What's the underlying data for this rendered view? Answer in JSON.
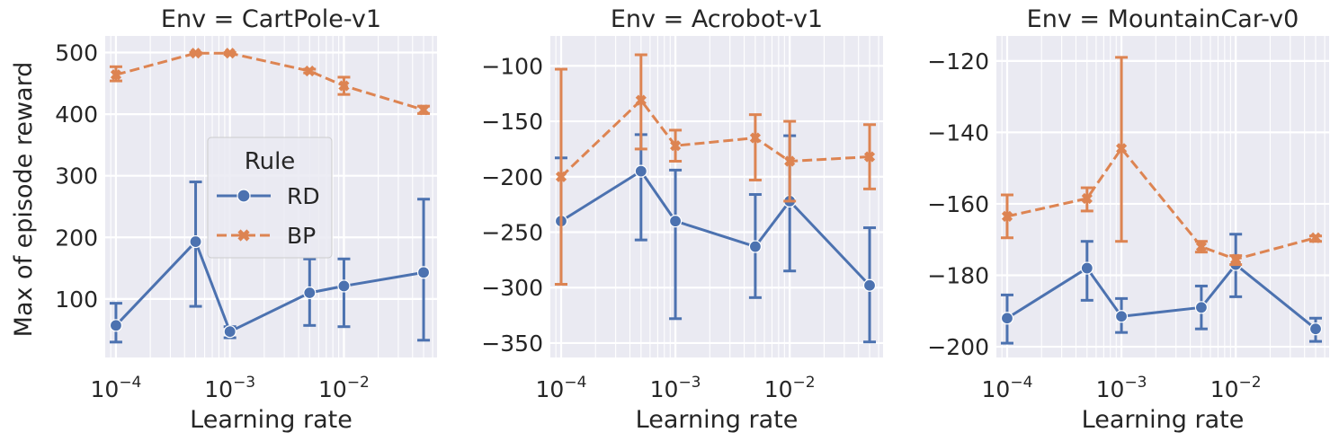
{
  "figure": {
    "ylabel": "Max of episode reward",
    "xlabel": "Learning rate",
    "legend": {
      "title": "Rule",
      "placement": "center of first panel",
      "entries": [
        {
          "name": "RD",
          "color": "#4c72b0",
          "marker": "circle",
          "dash": "solid"
        },
        {
          "name": "BP",
          "color": "#dd8452",
          "marker": "x",
          "dash": "dashed"
        }
      ]
    }
  },
  "chart_data": [
    {
      "type": "line",
      "title": "Env = CartPole-v1",
      "xscale": "log",
      "xticks": [
        "10^-4",
        "10^-3",
        "10^-2"
      ],
      "yticks": [
        100,
        200,
        300,
        400,
        500
      ],
      "ylim": [
        5,
        527
      ],
      "grid": true,
      "x": [
        0.0001,
        0.0005,
        0.001,
        0.005,
        0.01,
        0.05
      ],
      "series": [
        {
          "name": "RD",
          "values": [
            57,
            193,
            47,
            110,
            121,
            143
          ],
          "err_low": [
            30,
            88,
            37,
            57,
            55,
            33
          ],
          "err_high": [
            93,
            290,
            55,
            165,
            165,
            262
          ]
        },
        {
          "name": "BP",
          "values": [
            464,
            499,
            499,
            470,
            446,
            407
          ],
          "err_low": [
            454,
            497,
            497,
            467,
            432,
            401
          ],
          "err_high": [
            477,
            500,
            500,
            473,
            460,
            413
          ]
        }
      ]
    },
    {
      "type": "line",
      "title": "Env = Acrobot-v1",
      "xscale": "log",
      "xticks": [
        "10^-4",
        "10^-3",
        "10^-2"
      ],
      "yticks": [
        -350,
        -300,
        -250,
        -200,
        -150,
        -100
      ],
      "ylim": [
        -363,
        -73
      ],
      "grid": true,
      "x": [
        0.0001,
        0.0005,
        0.001,
        0.005,
        0.01,
        0.05
      ],
      "series": [
        {
          "name": "RD",
          "values": [
            -240,
            -195,
            -240,
            -263,
            -222,
            -298
          ],
          "err_low": [
            -297,
            -257,
            -328,
            -309,
            -285,
            -349
          ],
          "err_high": [
            -183,
            -162,
            -194,
            -216,
            -163,
            -246
          ]
        },
        {
          "name": "BP",
          "values": [
            -200,
            -131,
            -172,
            -165,
            -186,
            -182
          ],
          "err_low": [
            -297,
            -175,
            -186,
            -203,
            -222,
            -211
          ],
          "err_high": [
            -103,
            -90,
            -158,
            -144,
            -150,
            -153
          ]
        }
      ]
    },
    {
      "type": "line",
      "title": "Env = MountainCar-v0",
      "xscale": "log",
      "xticks": [
        "10^-4",
        "10^-3",
        "10^-2"
      ],
      "yticks": [
        -200,
        -180,
        -160,
        -140,
        -120
      ],
      "ylim": [
        -203,
        -113
      ],
      "grid": true,
      "x": [
        0.0001,
        0.0005,
        0.001,
        0.005,
        0.01,
        0.05
      ],
      "series": [
        {
          "name": "RD",
          "values": [
            -192,
            -178,
            -191.5,
            -189,
            -177,
            -195
          ],
          "err_low": [
            -199,
            -187,
            -196,
            -195,
            -186,
            -198.5
          ],
          "err_high": [
            -185.5,
            -170.5,
            -186.5,
            -183,
            -168.5,
            -192
          ]
        },
        {
          "name": "BP",
          "values": [
            -163.5,
            -158.5,
            -144.5,
            -172,
            -175.5,
            -169.5
          ],
          "err_low": [
            -169.5,
            -162,
            -170.5,
            -173.5,
            -177,
            -170.5
          ],
          "err_high": [
            -157.5,
            -155.5,
            -119,
            -170.5,
            -174.5,
            -169
          ]
        }
      ]
    }
  ]
}
